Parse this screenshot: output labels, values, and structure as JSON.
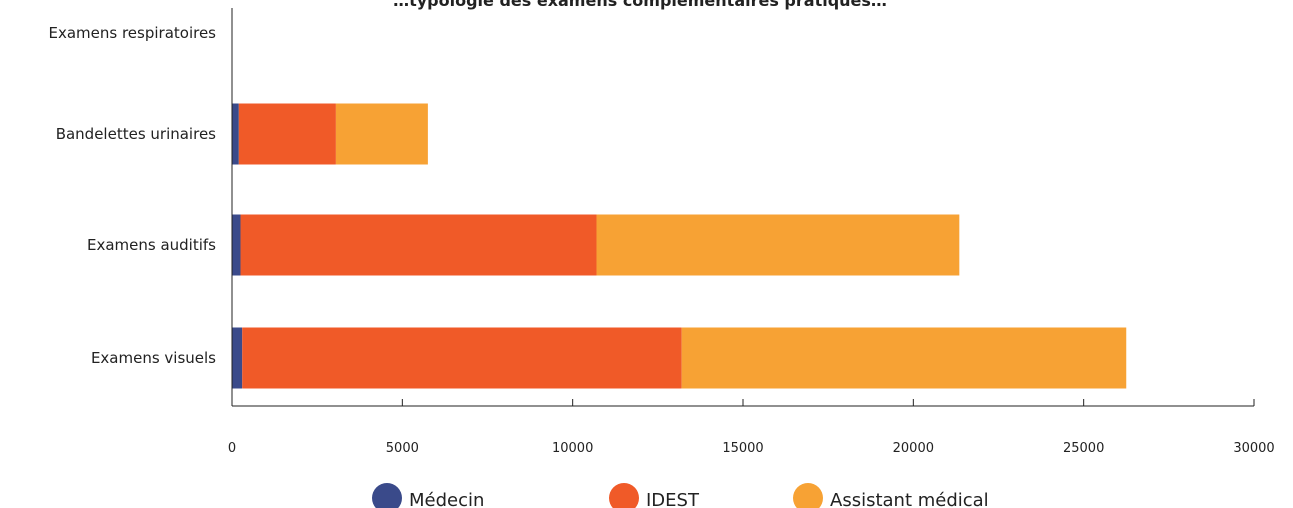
{
  "chart_data": {
    "type": "bar",
    "orientation": "horizontal",
    "stacked": true,
    "title": "…typologie des examens complémentaires pratiqués…",
    "categories": [
      "Examens respiratoires",
      "Bandelettes urinaires",
      "Examens auditifs",
      "Examens visuels"
    ],
    "series": [
      {
        "name": "Médecin",
        "color": "#3a4a8a",
        "values": [
          0,
          200,
          250,
          300
        ]
      },
      {
        "name": "IDEST",
        "color": "#f05a28",
        "values": [
          0,
          2850,
          10450,
          12900
        ]
      },
      {
        "name": "Assistant médical",
        "color": "#f7a234",
        "values": [
          0,
          2700,
          10650,
          13050
        ]
      }
    ],
    "xlim": [
      0,
      30000
    ],
    "xticks": [
      0,
      5000,
      10000,
      15000,
      20000,
      25000,
      30000
    ],
    "grid": false,
    "legend_position": "bottom"
  }
}
